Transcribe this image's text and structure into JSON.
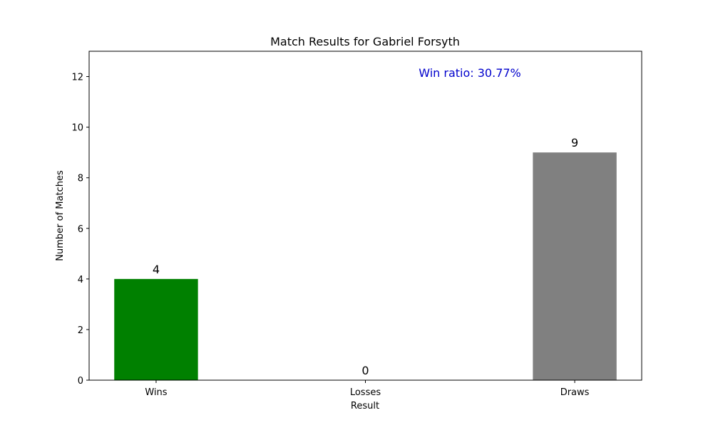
{
  "chart_data": {
    "type": "bar",
    "title": "Match Results for Gabriel Forsyth",
    "xlabel": "Result",
    "ylabel": "Number of Matches",
    "categories": [
      "Wins",
      "Losses",
      "Draws"
    ],
    "values": [
      4,
      0,
      9
    ],
    "bar_colors": [
      "#008000",
      "#ff0000",
      "#808080"
    ],
    "ylim": [
      0,
      13
    ],
    "yticks": [
      0,
      2,
      4,
      6,
      8,
      10,
      12
    ],
    "grid": false,
    "annotation": {
      "text": "Win ratio: 30.77%",
      "color": "#0000cc"
    }
  }
}
